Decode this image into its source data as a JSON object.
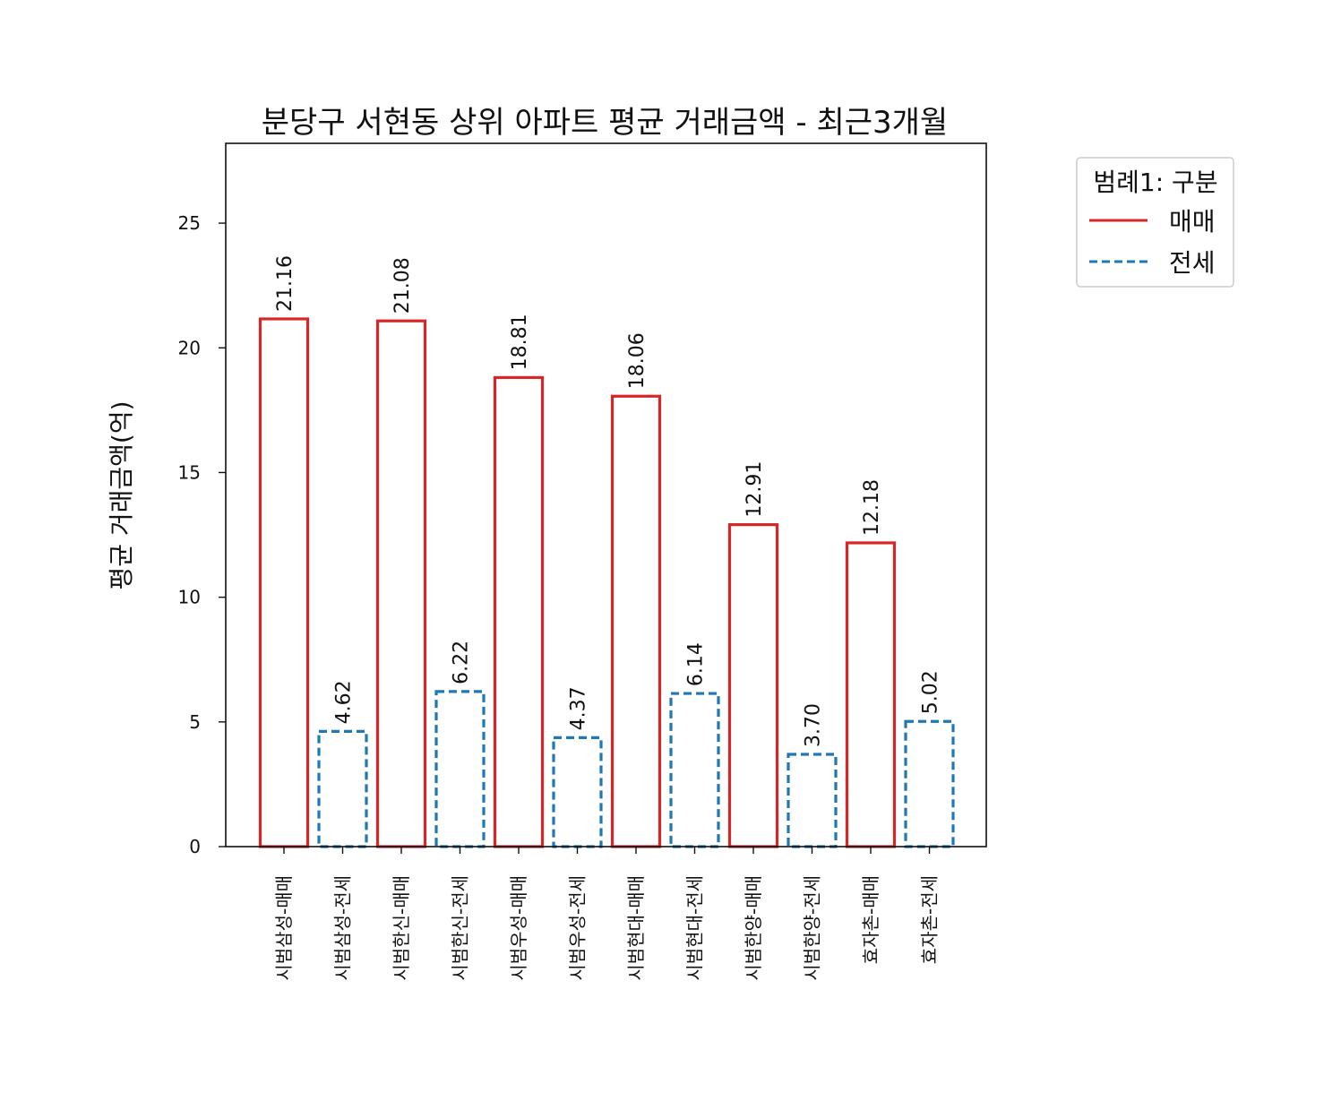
{
  "chart_data": {
    "type": "bar",
    "title": "분당구 서현동 상위 아파트 평균 거래금액 - 최근3개월",
    "xlabel": "",
    "ylabel": "평균 거래금액(억)",
    "ylim": [
      0,
      28.2
    ],
    "yticks": [
      0,
      5,
      10,
      15,
      20,
      25
    ],
    "categories": [
      "시범삼성-매매",
      "시범삼성-전세",
      "시범한신-매매",
      "시범한신-전세",
      "시범우성-매매",
      "시범우성-전세",
      "시범현대-매매",
      "시범현대-전세",
      "시범한양-매매",
      "시범한양-전세",
      "효자촌-매매",
      "효자촌-전세"
    ],
    "values": [
      21.16,
      4.62,
      21.08,
      6.22,
      18.81,
      4.37,
      18.06,
      6.14,
      12.91,
      3.7,
      12.18,
      5.02
    ],
    "value_labels": [
      "21.16",
      "4.62",
      "21.08",
      "6.22",
      "18.81",
      "4.37",
      "18.06",
      "6.14",
      "12.91",
      "3.70",
      "12.18",
      "5.02"
    ],
    "series_kind": [
      "매매",
      "전세",
      "매매",
      "전세",
      "매매",
      "전세",
      "매매",
      "전세",
      "매매",
      "전세",
      "매매",
      "전세"
    ],
    "legend": {
      "title": "범례1: 구분",
      "placement": "outside-top-right",
      "items": [
        {
          "label": "매매",
          "color": "#d62728",
          "style": "solid"
        },
        {
          "label": "전세",
          "color": "#1f77b4",
          "style": "dashed"
        }
      ]
    },
    "grid": false
  },
  "colors": {
    "매매": "#d62728",
    "전세": "#1f77b4"
  }
}
